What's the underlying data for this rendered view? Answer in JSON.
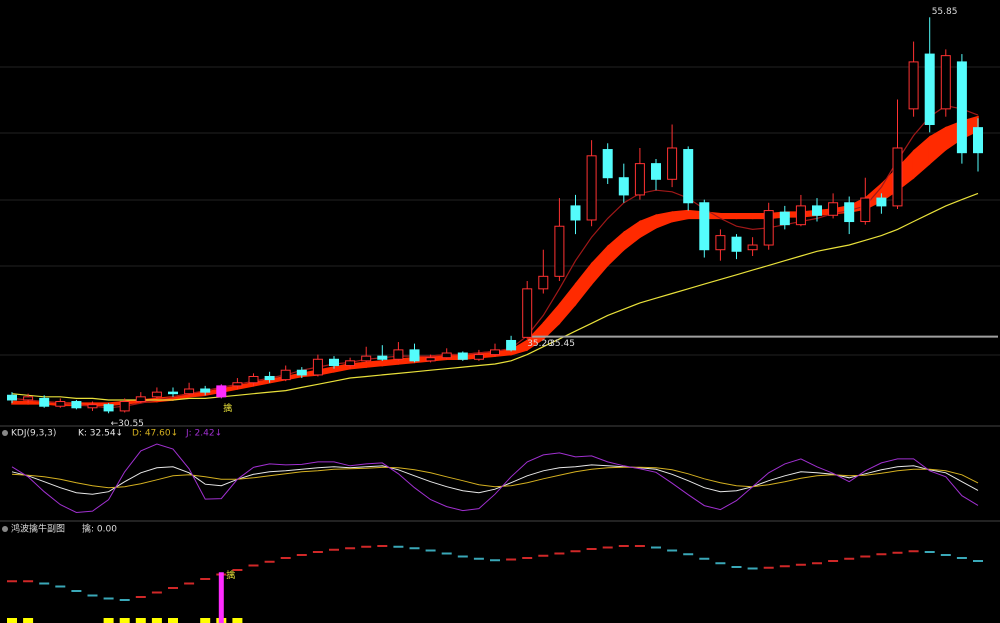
{
  "chart_data": [
    {
      "type": "candlestick",
      "ylim": [
        29.8,
        56.7
      ],
      "up_color": "#ff3232",
      "down_color": "#54fcfc",
      "highlight": {
        "index": 13,
        "color": "#ff2cff"
      },
      "open": [
        31.7,
        31.4,
        31.5,
        31.0,
        31.3,
        30.9,
        31.1,
        30.7,
        31.3,
        31.6,
        31.9,
        31.8,
        32.1,
        31.6,
        32.3,
        32.5,
        32.9,
        32.7,
        33.3,
        33.0,
        34.0,
        33.6,
        33.9,
        34.2,
        34.0,
        34.6,
        33.9,
        34.1,
        34.4,
        34.0,
        34.3,
        35.2,
        35.4,
        38.5,
        39.3,
        43.8,
        42.9,
        47.4,
        45.6,
        44.5,
        46.5,
        45.5,
        47.4,
        44.0,
        41.0,
        41.8,
        41.0,
        41.3,
        43.4,
        42.6,
        43.8,
        43.2,
        44.0,
        42.8,
        44.3,
        43.8,
        50.0,
        53.5,
        50.0,
        53.0,
        48.8
      ],
      "high": [
        31.9,
        31.8,
        31.7,
        31.5,
        31.4,
        31.3,
        31.2,
        31.5,
        31.9,
        32.2,
        32.2,
        32.5,
        32.3,
        32.4,
        32.8,
        33.1,
        33.2,
        33.6,
        33.5,
        34.3,
        34.2,
        34.1,
        34.8,
        34.9,
        35.1,
        35.0,
        34.3,
        34.7,
        34.5,
        34.6,
        35.0,
        35.5,
        39.0,
        41.0,
        44.3,
        44.5,
        48.0,
        47.8,
        46.5,
        47.5,
        46.8,
        49.0,
        47.6,
        44.2,
        42.3,
        42.0,
        41.8,
        44.0,
        43.8,
        44.5,
        44.3,
        44.6,
        44.4,
        45.6,
        44.6,
        50.6,
        54.3,
        55.85,
        53.8,
        53.5,
        49.4
      ],
      "low": [
        31.2,
        31.2,
        30.9,
        30.9,
        30.8,
        30.7,
        30.55,
        30.6,
        31.2,
        31.5,
        31.6,
        31.7,
        31.7,
        31.5,
        32.1,
        32.3,
        32.5,
        32.6,
        32.8,
        32.9,
        33.4,
        33.4,
        33.8,
        33.9,
        33.9,
        33.8,
        33.8,
        34.0,
        33.9,
        33.9,
        34.2,
        34.5,
        35.3,
        38.2,
        39.0,
        42.0,
        42.5,
        45.2,
        44.0,
        44.2,
        44.8,
        45.0,
        43.5,
        40.5,
        40.3,
        40.4,
        40.6,
        41.0,
        42.3,
        42.5,
        42.8,
        43.0,
        42.0,
        42.6,
        43.3,
        43.6,
        49.5,
        48.5,
        49.5,
        46.5,
        46.0
      ],
      "close": [
        31.4,
        31.6,
        31.0,
        31.3,
        30.9,
        31.1,
        30.7,
        31.3,
        31.6,
        31.9,
        31.8,
        32.1,
        31.9,
        32.3,
        32.5,
        32.9,
        32.7,
        33.3,
        33.0,
        34.0,
        33.6,
        33.9,
        34.2,
        34.0,
        34.6,
        33.9,
        34.1,
        34.4,
        34.0,
        34.3,
        34.6,
        34.6,
        38.5,
        39.3,
        42.5,
        42.9,
        47.0,
        45.6,
        44.5,
        46.5,
        45.5,
        47.5,
        44.0,
        41.0,
        41.9,
        40.9,
        41.3,
        43.5,
        42.6,
        43.8,
        43.2,
        44.0,
        42.8,
        44.3,
        43.8,
        47.5,
        53.0,
        49.0,
        53.4,
        47.2,
        47.2
      ],
      "band": {
        "color": "#ff2a00",
        "upper": [
          31.3,
          31.3,
          31.3,
          31.2,
          31.2,
          31.2,
          31.2,
          31.3,
          31.4,
          31.5,
          31.6,
          31.8,
          31.9,
          32.1,
          32.3,
          32.5,
          32.7,
          32.9,
          33.1,
          33.3,
          33.5,
          33.7,
          33.8,
          33.9,
          34.0,
          34.1,
          34.2,
          34.3,
          34.3,
          34.4,
          34.5,
          34.6,
          35.2,
          36.3,
          37.5,
          38.8,
          40.1,
          41.2,
          42.1,
          42.8,
          43.2,
          43.4,
          43.5,
          43.4,
          43.3,
          43.3,
          43.3,
          43.3,
          43.4,
          43.4,
          43.5,
          43.6,
          43.8,
          44.3,
          45.2,
          46.2,
          47.3,
          48.2,
          48.8,
          49.2,
          49.5
        ],
        "lower": [
          31.15,
          31.15,
          31.15,
          31.05,
          31.05,
          31.05,
          31.05,
          31.15,
          31.25,
          31.3,
          31.4,
          31.6,
          31.7,
          31.9,
          32.1,
          32.3,
          32.5,
          32.7,
          32.9,
          33.0,
          33.2,
          33.4,
          33.5,
          33.6,
          33.7,
          33.8,
          33.9,
          34.0,
          34.0,
          34.1,
          34.2,
          34.3,
          34.6,
          35.3,
          36.3,
          37.5,
          38.8,
          40.0,
          41.0,
          41.8,
          42.4,
          42.8,
          43.0,
          43.0,
          43.0,
          43.0,
          43.0,
          43.0,
          43.1,
          43.1,
          43.2,
          43.3,
          43.4,
          43.6,
          44.1,
          44.8,
          45.6,
          46.5,
          47.4,
          48.1,
          48.6
        ]
      },
      "lines": [
        {
          "color": "#a01818",
          "values": [
            31.5,
            31.4,
            31.3,
            31.2,
            31.1,
            31.0,
            30.9,
            31.0,
            31.2,
            31.4,
            31.6,
            31.8,
            32.0,
            32.2,
            32.4,
            32.6,
            32.8,
            33.0,
            33.3,
            33.5,
            33.7,
            33.8,
            34.0,
            34.1,
            34.2,
            34.2,
            34.2,
            34.3,
            34.3,
            34.4,
            34.5,
            34.7,
            35.5,
            36.8,
            38.5,
            40.3,
            41.8,
            43.0,
            44.0,
            44.6,
            44.8,
            44.7,
            44.3,
            43.6,
            43.0,
            42.5,
            42.3,
            42.4,
            42.6,
            42.8,
            43.0,
            43.3,
            43.5,
            43.8,
            45.0,
            46.7,
            48.3,
            49.5,
            50.2,
            50.0,
            49.6
          ]
        },
        {
          "color": "#e8e03a",
          "values": [
            31.8,
            31.7,
            31.6,
            31.6,
            31.5,
            31.5,
            31.4,
            31.4,
            31.4,
            31.4,
            31.4,
            31.5,
            31.5,
            31.6,
            31.7,
            31.8,
            31.9,
            32.0,
            32.2,
            32.4,
            32.6,
            32.8,
            32.9,
            33.0,
            33.1,
            33.2,
            33.3,
            33.4,
            33.5,
            33.6,
            33.7,
            33.9,
            34.3,
            34.8,
            35.3,
            35.8,
            36.3,
            36.8,
            37.2,
            37.6,
            37.9,
            38.2,
            38.5,
            38.8,
            39.1,
            39.4,
            39.7,
            40.0,
            40.3,
            40.6,
            40.9,
            41.1,
            41.3,
            41.6,
            41.9,
            42.3,
            42.8,
            43.3,
            43.8,
            44.2,
            44.6
          ]
        }
      ],
      "ref_line": {
        "value": 35.45,
        "color": "#a0a0a0",
        "start_index": 32,
        "labels": [
          "35.20",
          "35.45"
        ]
      },
      "annotations": [
        {
          "text": "←30.55",
          "index": 6,
          "at": "low",
          "color": "#dddddd"
        },
        {
          "text": "擒",
          "index": 13,
          "at": "low",
          "color": "#e8e03a"
        },
        {
          "text": "55.85",
          "index": 57,
          "at": "high",
          "color": "#dddddd"
        }
      ]
    },
    {
      "type": "line",
      "title": "KDJ(9,3,3)",
      "ylim": [
        -25,
        130
      ],
      "series": [
        {
          "name": "K: 32.54↓",
          "color": "#e8e8e8",
          "values": [
            70,
            62,
            50,
            38,
            28,
            25,
            30,
            50,
            68,
            78,
            80,
            68,
            45,
            42,
            55,
            65,
            70,
            72,
            75,
            78,
            80,
            78,
            80,
            82,
            74,
            62,
            50,
            40,
            32,
            28,
            35,
            48,
            62,
            72,
            78,
            80,
            84,
            82,
            80,
            78,
            75,
            65,
            52,
            38,
            30,
            32,
            40,
            52,
            62,
            70,
            68,
            65,
            58,
            66,
            74,
            80,
            82,
            74,
            68,
            50,
            32.54
          ]
        },
        {
          "name": "D: 47.60↓",
          "color": "#d4b020",
          "values": [
            65,
            63,
            60,
            55,
            48,
            42,
            38,
            40,
            46,
            54,
            62,
            64,
            60,
            55,
            55,
            58,
            62,
            66,
            70,
            72,
            75,
            76,
            77,
            79,
            78,
            74,
            68,
            60,
            52,
            44,
            40,
            42,
            48,
            56,
            63,
            70,
            75,
            78,
            79,
            79,
            78,
            74,
            66,
            56,
            48,
            42,
            40,
            44,
            50,
            57,
            62,
            64,
            62,
            63,
            67,
            72,
            75,
            75,
            72,
            64,
            47.6
          ]
        },
        {
          "name": "J: 2.42↓",
          "color": "#a030d0",
          "values": [
            80,
            60,
            30,
            4,
            -12,
            -9,
            14,
            70,
            112,
            126,
            116,
            76,
            15,
            16,
            55,
            79,
            86,
            84,
            85,
            90,
            90,
            82,
            86,
            88,
            66,
            38,
            14,
            0,
            -8,
            -4,
            25,
            60,
            90,
            104,
            108,
            100,
            102,
            90,
            82,
            76,
            69,
            47,
            24,
            2,
            -6,
            12,
            40,
            68,
            86,
            96,
            80,
            67,
            50,
            72,
            88,
            96,
            96,
            72,
            60,
            22,
            2.42
          ]
        }
      ]
    },
    {
      "type": "signal",
      "title": "鸿波擒牛副图",
      "legend": "擒: 0.00",
      "ylim": [
        0,
        100
      ],
      "rise_color": "#d02828",
      "fall_color": "#3aa8b8",
      "values": [
        45,
        45,
        42,
        38,
        32,
        26,
        22,
        20,
        24,
        30,
        36,
        42,
        48,
        54,
        60,
        66,
        71,
        76,
        80,
        84,
        87,
        89,
        91,
        92,
        91,
        89,
        86,
        82,
        78,
        75,
        73,
        74,
        76,
        79,
        82,
        85,
        88,
        90,
        92,
        92,
        90,
        86,
        81,
        75,
        69,
        64,
        62,
        63,
        65,
        67,
        69,
        72,
        75,
        78,
        81,
        83,
        85,
        84,
        80,
        76,
        72
      ],
      "signal_color": "#ffff00",
      "signals": [
        1,
        1,
        0,
        0,
        0,
        0,
        1,
        1,
        1,
        1,
        1,
        0,
        1,
        1,
        1,
        0,
        0,
        0,
        0,
        0,
        0,
        0,
        0,
        0,
        0,
        0,
        0,
        0,
        0,
        0,
        0,
        0,
        0,
        0,
        0,
        0,
        0,
        0,
        0,
        0,
        0,
        0,
        0,
        0,
        0,
        0,
        0,
        0,
        0,
        0,
        0,
        0,
        0,
        0,
        0,
        0,
        0,
        0,
        0,
        0,
        0
      ],
      "qin_color": "#ff2cff",
      "qin_label": "擒",
      "qin": [
        0,
        0,
        0,
        0,
        0,
        0,
        0,
        0,
        0,
        0,
        0,
        0,
        0,
        57,
        0,
        0,
        0,
        0,
        0,
        0,
        0,
        0,
        0,
        0,
        0,
        0,
        0,
        0,
        0,
        0,
        0,
        0,
        0,
        0,
        0,
        0,
        0,
        0,
        0,
        0,
        0,
        0,
        0,
        0,
        0,
        0,
        0,
        0,
        0,
        0,
        0,
        0,
        0,
        0,
        0,
        0,
        0,
        0,
        0,
        0,
        0
      ]
    }
  ]
}
